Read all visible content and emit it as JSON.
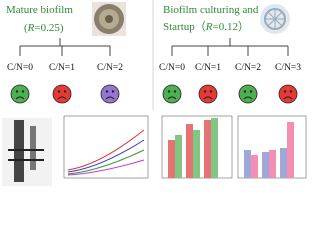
{
  "left": {
    "title": "Mature biofilm",
    "ratio_open": "(",
    "ratio_symbol": "R",
    "ratio_rest": "=0.25)",
    "conditions": [
      "C/N=0",
      "C/N=1",
      "C/N=2"
    ]
  },
  "right": {
    "title_line1": "Biofilm culturing and",
    "title_line2": "Startup（",
    "ratio_symbol": "R",
    "ratio_rest": "=0.12）",
    "conditions": [
      "C/N=0",
      "C/N=1",
      "C/N=2",
      "C/N=3"
    ]
  }
}
